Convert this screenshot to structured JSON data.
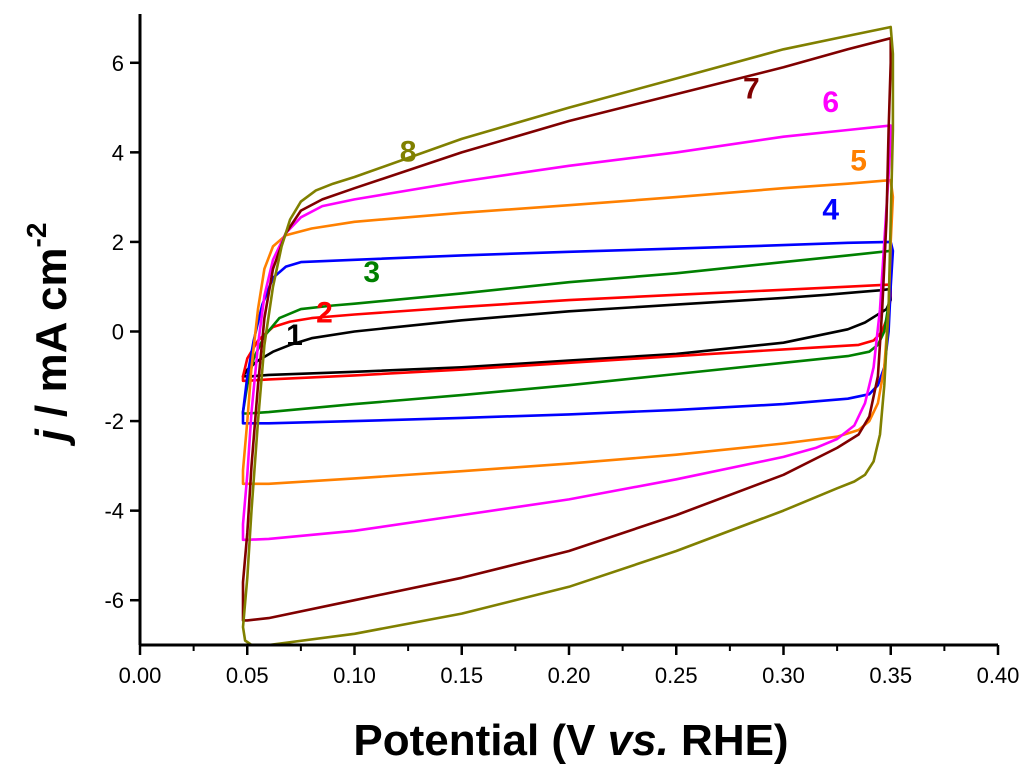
{
  "chart_data": {
    "type": "line",
    "title": "",
    "xlabel_parts": {
      "main": "Potential (V ",
      "italic": "vs.",
      "rest": " RHE)"
    },
    "ylabel_parts": {
      "italic": "j",
      "main": " / mA cm",
      "superscript": "-2"
    },
    "xlim": [
      0.0,
      0.4
    ],
    "ylim": [
      -7,
      7
    ],
    "xticks": [
      0.0,
      0.05,
      0.1,
      0.15,
      0.2,
      0.25,
      0.3,
      0.35,
      0.4
    ],
    "xtick_labels": [
      "0.00",
      "0.05",
      "0.10",
      "0.15",
      "0.20",
      "0.25",
      "0.30",
      "0.35",
      "0.40"
    ],
    "yticks": [
      -6,
      -4,
      -2,
      0,
      2,
      4,
      6
    ],
    "ytick_labels": [
      "-6",
      "-4",
      "-2",
      "0",
      "2",
      "4",
      "6"
    ],
    "grid": false,
    "legend": "none",
    "series": [
      {
        "label": "1",
        "color": "#000000",
        "label_pos": [
          0.072,
          -0.3
        ],
        "x": [
          0.048,
          0.05,
          0.055,
          0.062,
          0.07,
          0.08,
          0.1,
          0.15,
          0.2,
          0.25,
          0.3,
          0.32,
          0.335,
          0.345,
          0.35,
          0.35,
          0.348,
          0.343,
          0.338,
          0.33,
          0.3,
          0.25,
          0.2,
          0.15,
          0.1,
          0.06,
          0.052,
          0.049,
          0.048
        ],
        "y": [
          -1.0,
          -0.85,
          -0.65,
          -0.45,
          -0.3,
          -0.15,
          0.0,
          0.25,
          0.45,
          0.6,
          0.75,
          0.82,
          0.88,
          0.92,
          0.95,
          0.7,
          0.5,
          0.35,
          0.2,
          0.05,
          -0.25,
          -0.5,
          -0.65,
          -0.8,
          -0.9,
          -0.97,
          -1.0,
          -1.0,
          -1.0
        ]
      },
      {
        "label": "2",
        "color": "#ff0000",
        "label_pos": [
          0.086,
          0.2
        ],
        "x": [
          0.048,
          0.05,
          0.055,
          0.062,
          0.07,
          0.08,
          0.1,
          0.15,
          0.2,
          0.25,
          0.3,
          0.33,
          0.35,
          0.35,
          0.349,
          0.346,
          0.342,
          0.335,
          0.3,
          0.25,
          0.2,
          0.15,
          0.1,
          0.06,
          0.05,
          0.048
        ],
        "y": [
          -1.0,
          -0.6,
          -0.2,
          0.1,
          0.22,
          0.3,
          0.38,
          0.55,
          0.7,
          0.82,
          0.93,
          1.0,
          1.05,
          0.8,
          0.4,
          0.0,
          -0.2,
          -0.3,
          -0.4,
          -0.55,
          -0.7,
          -0.85,
          -0.98,
          -1.07,
          -1.1,
          -1.1
        ]
      },
      {
        "label": "3",
        "color": "#008000",
        "label_pos": [
          0.108,
          1.1
        ],
        "x": [
          0.048,
          0.05,
          0.053,
          0.058,
          0.065,
          0.075,
          0.09,
          0.1,
          0.15,
          0.2,
          0.25,
          0.3,
          0.33,
          0.35,
          0.35,
          0.349,
          0.347,
          0.344,
          0.34,
          0.33,
          0.3,
          0.25,
          0.2,
          0.15,
          0.1,
          0.06,
          0.05,
          0.048
        ],
        "y": [
          -1.8,
          -1.2,
          -0.6,
          -0.1,
          0.3,
          0.5,
          0.58,
          0.62,
          0.85,
          1.1,
          1.3,
          1.55,
          1.7,
          1.8,
          1.3,
          0.6,
          0.0,
          -0.3,
          -0.45,
          -0.55,
          -0.7,
          -0.95,
          -1.2,
          -1.42,
          -1.62,
          -1.8,
          -1.83,
          -1.83
        ]
      },
      {
        "label": "4",
        "color": "#0000ff",
        "label_pos": [
          0.322,
          2.5
        ],
        "x": [
          0.048,
          0.05,
          0.053,
          0.057,
          0.062,
          0.068,
          0.075,
          0.1,
          0.15,
          0.2,
          0.25,
          0.3,
          0.33,
          0.35,
          0.351,
          0.35,
          0.349,
          0.347,
          0.344,
          0.34,
          0.33,
          0.3,
          0.25,
          0.2,
          0.15,
          0.1,
          0.06,
          0.05,
          0.048
        ],
        "y": [
          -1.8,
          -1.0,
          -0.2,
          0.6,
          1.2,
          1.45,
          1.55,
          1.6,
          1.7,
          1.78,
          1.85,
          1.93,
          1.98,
          2.0,
          1.8,
          1.0,
          0.0,
          -0.8,
          -1.2,
          -1.4,
          -1.5,
          -1.62,
          -1.75,
          -1.85,
          -1.93,
          -2.0,
          -2.05,
          -2.05,
          -2.05
        ]
      },
      {
        "label": "5",
        "color": "#ff8000",
        "label_pos": [
          0.335,
          3.6
        ],
        "x": [
          0.048,
          0.05,
          0.052,
          0.055,
          0.058,
          0.062,
          0.068,
          0.08,
          0.1,
          0.15,
          0.2,
          0.25,
          0.3,
          0.33,
          0.35,
          0.351,
          0.35,
          0.349,
          0.347,
          0.344,
          0.34,
          0.335,
          0.325,
          0.3,
          0.25,
          0.2,
          0.15,
          0.1,
          0.06,
          0.05,
          0.048
        ],
        "y": [
          -3.1,
          -2.0,
          -0.8,
          0.5,
          1.4,
          1.9,
          2.15,
          2.3,
          2.45,
          2.65,
          2.82,
          3.0,
          3.2,
          3.3,
          3.38,
          3.0,
          2.0,
          0.5,
          -0.8,
          -1.6,
          -2.0,
          -2.2,
          -2.35,
          -2.5,
          -2.75,
          -2.95,
          -3.12,
          -3.28,
          -3.4,
          -3.4,
          -3.4
        ]
      },
      {
        "label": "6",
        "color": "#ff00ff",
        "label_pos": [
          0.322,
          4.9
        ],
        "x": [
          0.048,
          0.05,
          0.052,
          0.055,
          0.058,
          0.062,
          0.068,
          0.075,
          0.085,
          0.1,
          0.15,
          0.2,
          0.25,
          0.3,
          0.33,
          0.35,
          0.35,
          0.349,
          0.347,
          0.345,
          0.342,
          0.338,
          0.333,
          0.325,
          0.315,
          0.3,
          0.25,
          0.2,
          0.15,
          0.1,
          0.06,
          0.05,
          0.048
        ],
        "y": [
          -4.3,
          -3.2,
          -1.8,
          -0.3,
          0.8,
          1.6,
          2.2,
          2.55,
          2.8,
          2.95,
          3.35,
          3.7,
          4.0,
          4.35,
          4.5,
          4.6,
          4.3,
          3.5,
          2.0,
          0.5,
          -0.8,
          -1.6,
          -2.1,
          -2.4,
          -2.6,
          -2.8,
          -3.3,
          -3.75,
          -4.1,
          -4.45,
          -4.63,
          -4.65,
          -4.65
        ]
      },
      {
        "label": "7",
        "color": "#800000",
        "label_pos": [
          0.285,
          5.2
        ],
        "x": [
          0.048,
          0.05,
          0.052,
          0.055,
          0.058,
          0.062,
          0.068,
          0.075,
          0.085,
          0.1,
          0.15,
          0.2,
          0.25,
          0.3,
          0.33,
          0.35,
          0.35,
          0.349,
          0.348,
          0.346,
          0.344,
          0.34,
          0.335,
          0.325,
          0.3,
          0.25,
          0.2,
          0.15,
          0.1,
          0.06,
          0.05,
          0.048
        ],
        "y": [
          -5.6,
          -4.5,
          -3.0,
          -1.2,
          0.3,
          1.4,
          2.2,
          2.7,
          2.95,
          3.2,
          4.0,
          4.7,
          5.3,
          5.9,
          6.3,
          6.55,
          6.0,
          4.5,
          2.5,
          0.5,
          -1.0,
          -1.9,
          -2.3,
          -2.6,
          -3.2,
          -4.1,
          -4.9,
          -5.5,
          -6.0,
          -6.4,
          -6.45,
          -6.45
        ]
      },
      {
        "label": "8",
        "color": "#808000",
        "label_pos": [
          0.125,
          3.8
        ],
        "x": [
          0.048,
          0.05,
          0.052,
          0.055,
          0.058,
          0.062,
          0.066,
          0.07,
          0.075,
          0.082,
          0.09,
          0.1,
          0.15,
          0.2,
          0.25,
          0.3,
          0.33,
          0.35,
          0.351,
          0.351,
          0.35,
          0.349,
          0.347,
          0.345,
          0.342,
          0.338,
          0.333,
          0.325,
          0.3,
          0.25,
          0.2,
          0.15,
          0.1,
          0.06,
          0.052,
          0.049,
          0.048
        ],
        "y": [
          -6.6,
          -5.5,
          -4.0,
          -2.0,
          -0.3,
          1.0,
          1.9,
          2.5,
          2.9,
          3.15,
          3.3,
          3.45,
          4.3,
          5.0,
          5.65,
          6.3,
          6.6,
          6.8,
          6.2,
          4.5,
          2.5,
          0.5,
          -1.2,
          -2.3,
          -2.9,
          -3.2,
          -3.35,
          -3.5,
          -4.0,
          -4.9,
          -5.7,
          -6.3,
          -6.75,
          -7.0,
          -7.0,
          -6.9,
          -6.6
        ]
      }
    ]
  }
}
